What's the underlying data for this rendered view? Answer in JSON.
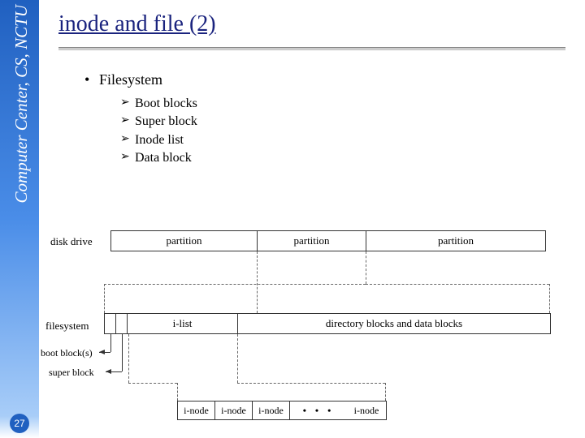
{
  "sidebar": {
    "text": "Computer Center, CS, NCTU"
  },
  "page_number": "27",
  "title": "inode and file (2)",
  "bullet": {
    "main": "Filesystem",
    "subs": [
      "Boot blocks",
      "Super block",
      "Inode list",
      "Data block"
    ]
  },
  "diagram": {
    "disk_label": "disk drive",
    "disk_row": {
      "parts": [
        "partition",
        "partition",
        "partition"
      ],
      "widths": [
        180,
        134,
        220
      ]
    },
    "fs_label": "filesystem",
    "fs_row": {
      "cells": [
        "",
        "",
        "i-list",
        "directory blocks and data blocks"
      ],
      "widths": [
        14,
        14,
        136,
        384
      ]
    },
    "boot_label": "boot block(s)",
    "super_label": "super block",
    "inode_row": {
      "cells": [
        "i-node",
        "i-node",
        "i-node",
        "",
        "i-node"
      ],
      "widths": [
        46,
        46,
        46,
        70,
        48
      ],
      "ellipsis_index": 3
    },
    "colors": {
      "border": "#333333",
      "text": "#000000",
      "title": "#1a237e"
    }
  }
}
